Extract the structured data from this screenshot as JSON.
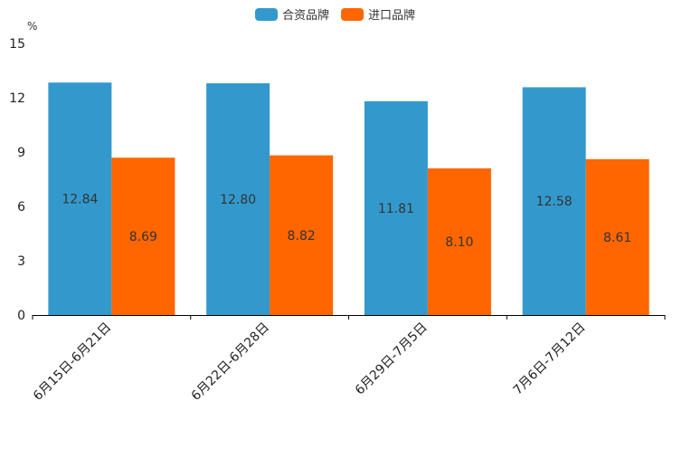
{
  "chart_data": {
    "type": "bar",
    "title": "",
    "xlabel": "",
    "ylabel": "%",
    "ylim": [
      0,
      15
    ],
    "yticks": [
      0,
      3,
      6,
      9,
      12,
      15
    ],
    "categories": [
      "6月15日-6月21日",
      "6月22日-6月28日",
      "6月29日-7月5日",
      "7月6日-7月12日"
    ],
    "series": [
      {
        "name": "合资品牌",
        "color": "#3399cc",
        "values": [
          12.84,
          12.8,
          11.81,
          12.58
        ],
        "labels": [
          "12.84",
          "12.80",
          "11.81",
          "12.58"
        ]
      },
      {
        "name": "进口品牌",
        "color": "#ff6600",
        "values": [
          8.69,
          8.82,
          8.1,
          8.61
        ],
        "labels": [
          "8.69",
          "8.82",
          "8.10",
          "8.61"
        ]
      }
    ],
    "legend": "top-center",
    "grid": false
  }
}
